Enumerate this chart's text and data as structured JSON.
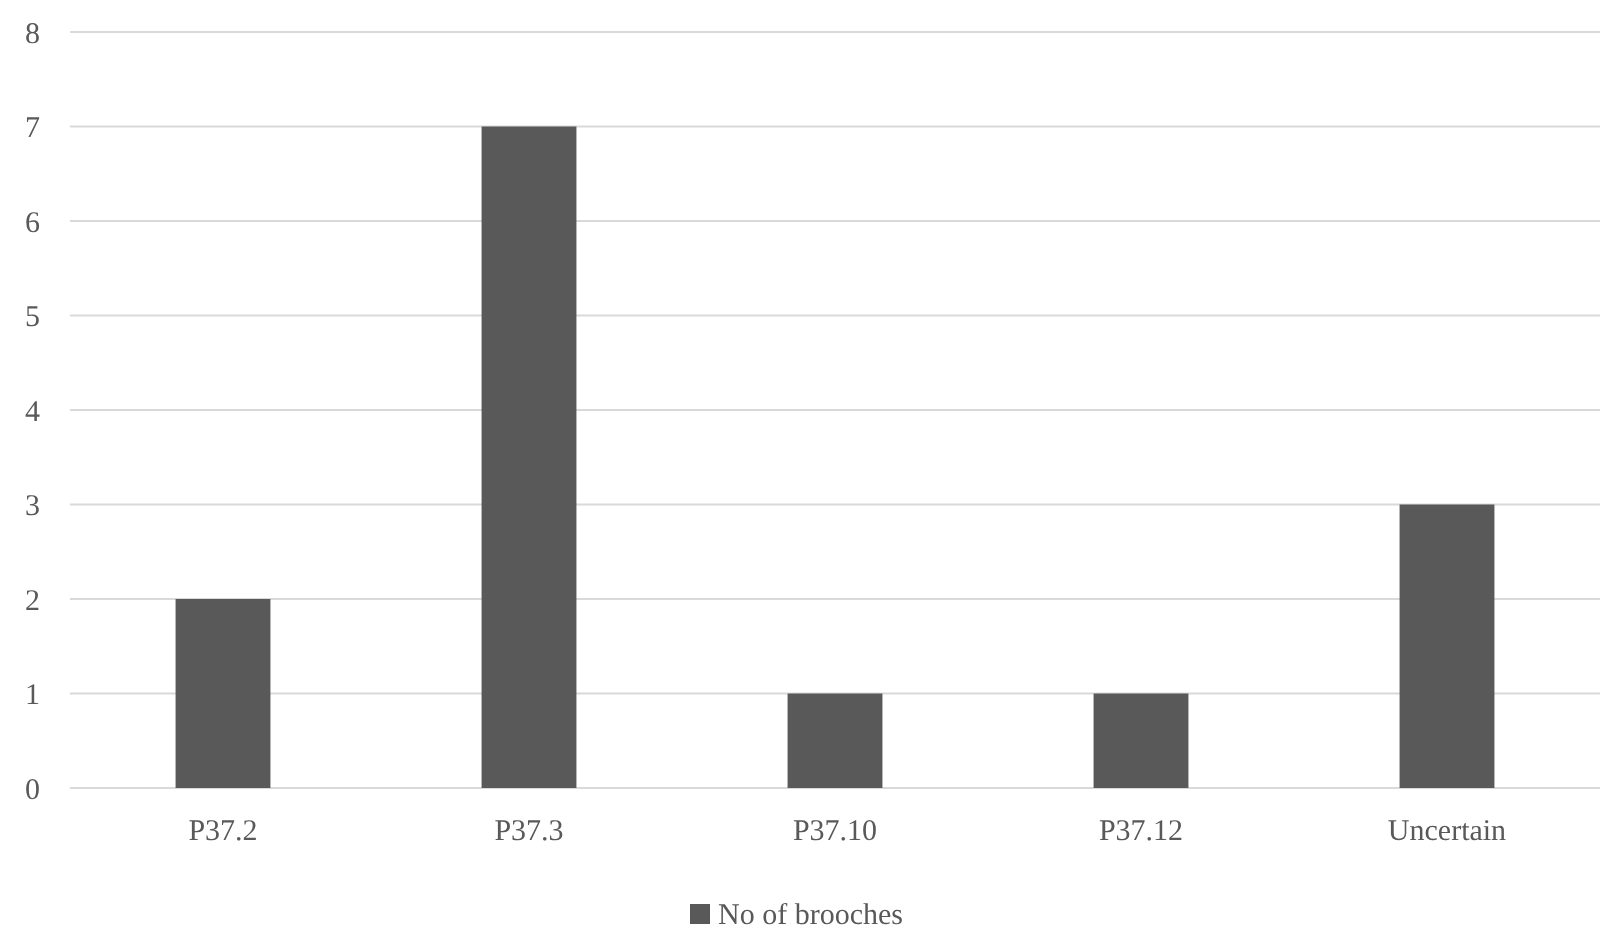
{
  "chart_data": {
    "type": "bar",
    "categories": [
      "P37.2",
      "P37.3",
      "P37.10",
      "P37.12",
      "Uncertain"
    ],
    "series": [
      {
        "name": "No of brooches",
        "color": "#595959",
        "values": [
          2,
          7,
          1,
          1,
          3
        ]
      }
    ],
    "ylim": [
      0,
      8
    ],
    "yticks": [
      0,
      1,
      2,
      3,
      4,
      5,
      6,
      7,
      8
    ],
    "grid": "y",
    "legend": "bottom"
  }
}
